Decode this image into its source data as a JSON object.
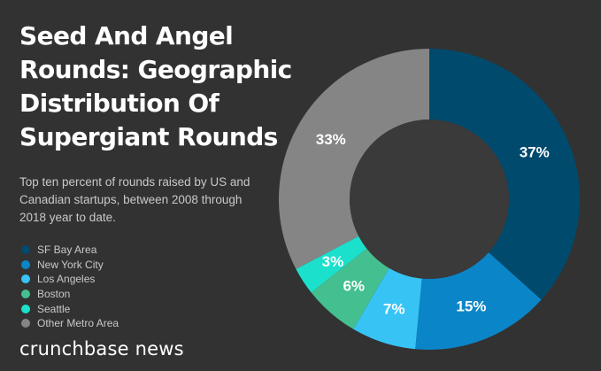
{
  "title_lines": [
    "Seed And Angel",
    "Rounds: Geographic",
    "Distribution Of",
    "Supergiant Rounds"
  ],
  "subtitle": "Top ten percent of rounds raised by US and Canadian startups, between 2008 through 2018 year to date.",
  "brand": "crunchbase news",
  "colors": {
    "background": "#323232",
    "center_hole": "#3a3a3a"
  },
  "chart_data": {
    "type": "pie",
    "donut": true,
    "title": "Seed And Angel Rounds: Geographic Distribution Of Supergiant Rounds",
    "unit": "%",
    "legend_position": "left",
    "slices": [
      {
        "name": "SF Bay Area",
        "value": 37,
        "label": "37%",
        "color": "#004a6e"
      },
      {
        "name": "New York City",
        "value": 15,
        "label": "15%",
        "color": "#0a86c8"
      },
      {
        "name": "Los Angeles",
        "value": 7,
        "label": "7%",
        "color": "#38c3f5"
      },
      {
        "name": "Boston",
        "value": 6,
        "label": "6%",
        "color": "#44bf8f"
      },
      {
        "name": "Seattle",
        "value": 3,
        "label": "3%",
        "color": "#1be0cc"
      },
      {
        "name": "Other Metro Area",
        "value": 33,
        "label": "33%",
        "color": "#858585"
      }
    ]
  }
}
